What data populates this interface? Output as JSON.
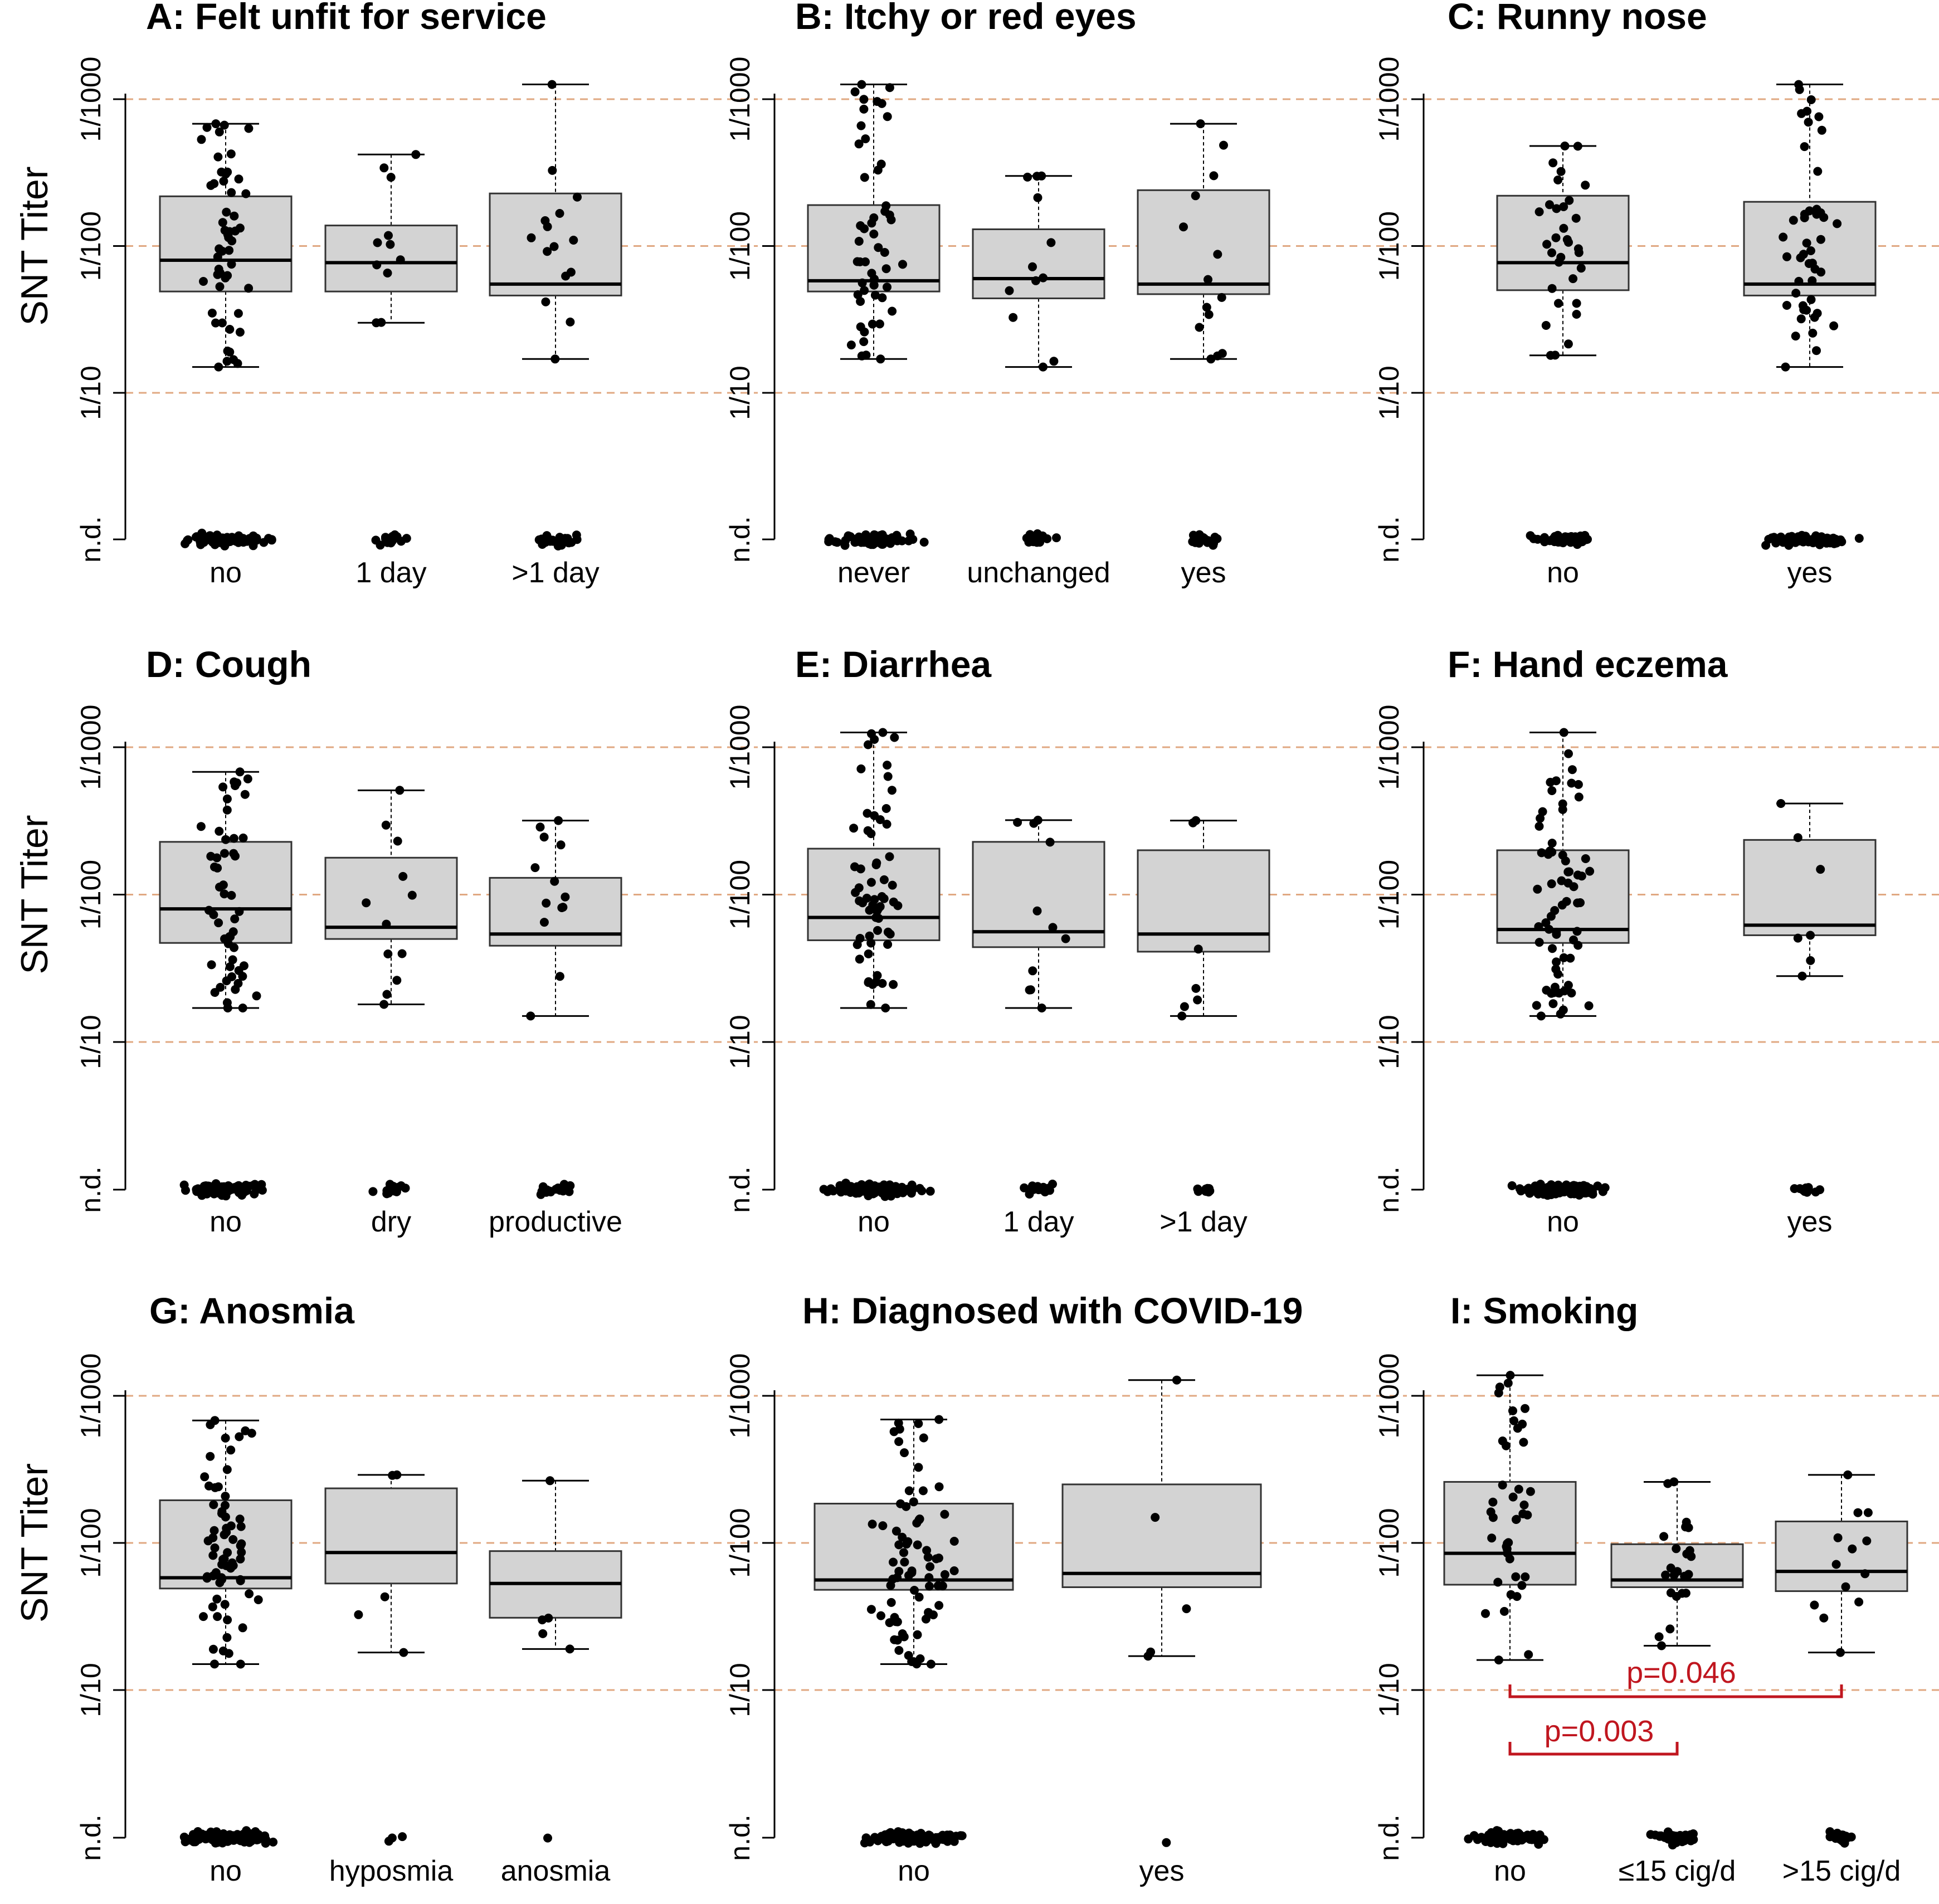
{
  "chart_data": {
    "type": "box",
    "y_axis_label": "SNT Titer",
    "y_tick_labels": [
      "n.d.",
      "1/10",
      "1/100",
      "1/1000"
    ],
    "y_scale": "log10 of reciprocal titer; n.d. row below detection",
    "grid": "dashed orange lines at 1/10, 1/100, 1/1000",
    "panels": [
      {
        "title": "A: Felt unfit for service",
        "groups": [
          {
            "label": "no",
            "lower": 15,
            "q1": 49,
            "median": 80,
            "q3": 218,
            "upper": 680,
            "nd": 90
          },
          {
            "label": "1 day",
            "lower": 30,
            "q1": 49,
            "median": 77,
            "q3": 138,
            "upper": 420,
            "nd": 17
          },
          {
            "label": ">1 day",
            "lower": 17,
            "q1": 46,
            "median": 55,
            "q3": 228,
            "upper": 1260,
            "nd": 24
          }
        ]
      },
      {
        "title": "B: Itchy or red eyes",
        "groups": [
          {
            "label": "never",
            "lower": 17,
            "q1": 49,
            "median": 58,
            "q3": 190,
            "upper": 1260,
            "nd": 90
          },
          {
            "label": "unchanged",
            "lower": 15,
            "q1": 44,
            "median": 60,
            "q3": 130,
            "upper": 300,
            "nd": 18
          },
          {
            "label": "yes",
            "lower": 17,
            "q1": 47,
            "median": 55,
            "q3": 240,
            "upper": 680,
            "nd": 22
          }
        ]
      },
      {
        "title": "C: Runny nose",
        "groups": [
          {
            "label": "no",
            "lower": 18,
            "q1": 50,
            "median": 77,
            "q3": 220,
            "upper": 480,
            "nd": 55
          },
          {
            "label": "yes",
            "lower": 15,
            "q1": 46,
            "median": 55,
            "q3": 200,
            "upper": 1260,
            "nd": 80
          }
        ]
      },
      {
        "title": "D: Cough",
        "groups": [
          {
            "label": "no",
            "lower": 17,
            "q1": 47,
            "median": 80,
            "q3": 228,
            "upper": 680,
            "nd": 90
          },
          {
            "label": "dry",
            "lower": 18,
            "q1": 50,
            "median": 60,
            "q3": 178,
            "upper": 510,
            "nd": 18
          },
          {
            "label": "productive",
            "lower": 15,
            "q1": 45,
            "median": 54,
            "q3": 130,
            "upper": 318,
            "nd": 20
          }
        ]
      },
      {
        "title": "E: Diarrhea",
        "groups": [
          {
            "label": "no",
            "lower": 17,
            "q1": 49,
            "median": 70,
            "q3": 205,
            "upper": 1260,
            "nd": 110
          },
          {
            "label": "1 day",
            "lower": 17,
            "q1": 44,
            "median": 56,
            "q3": 228,
            "upper": 320,
            "nd": 16
          },
          {
            "label": ">1 day",
            "lower": 15,
            "q1": 41,
            "median": 54,
            "q3": 200,
            "upper": 318,
            "nd": 9
          }
        ]
      },
      {
        "title": "F: Hand eczema",
        "groups": [
          {
            "label": "no",
            "lower": 15,
            "q1": 47,
            "median": 58,
            "q3": 200,
            "upper": 1260,
            "nd": 120
          },
          {
            "label": "yes",
            "lower": 28,
            "q1": 53,
            "median": 62,
            "q3": 235,
            "upper": 415,
            "nd": 9
          }
        ]
      },
      {
        "title": "G: Anosmia",
        "groups": [
          {
            "label": "no",
            "lower": 15,
            "q1": 49,
            "median": 58,
            "q3": 195,
            "upper": 680,
            "nd": 120
          },
          {
            "label": "hyposmia",
            "lower": 18,
            "q1": 53,
            "median": 86,
            "q3": 235,
            "upper": 290,
            "nd": 3
          },
          {
            "label": "anosmia",
            "lower": 19,
            "q1": 31,
            "median": 53,
            "q3": 88,
            "upper": 265,
            "nd": 1
          }
        ]
      },
      {
        "title": "H: Diagnosed with COVID-19",
        "groups": [
          {
            "label": "no",
            "lower": 15,
            "q1": 48,
            "median": 56,
            "q3": 185,
            "upper": 690,
            "nd": 130
          },
          {
            "label": "yes",
            "lower": 17,
            "q1": 50,
            "median": 62,
            "q3": 250,
            "upper": 1280,
            "nd": 1
          }
        ]
      },
      {
        "title": "I: Smoking",
        "groups": [
          {
            "label": "no",
            "lower": 16,
            "q1": 52,
            "median": 85,
            "q3": 260,
            "upper": 1380,
            "nd": 70
          },
          {
            "label": "≤15 cig/d",
            "lower": 20,
            "q1": 50,
            "median": 56,
            "q3": 98,
            "upper": 260,
            "nd": 38
          },
          {
            "label": ">15 cig/d",
            "lower": 18,
            "q1": 47,
            "median": 64,
            "q3": 140,
            "upper": 290,
            "nd": 20
          }
        ],
        "annotations": [
          {
            "text": "p=0.046",
            "from": "no",
            "to": ">15 cig/d"
          },
          {
            "text": "p=0.003",
            "from": "no",
            "to": "≤15 cig/d"
          }
        ]
      }
    ]
  }
}
